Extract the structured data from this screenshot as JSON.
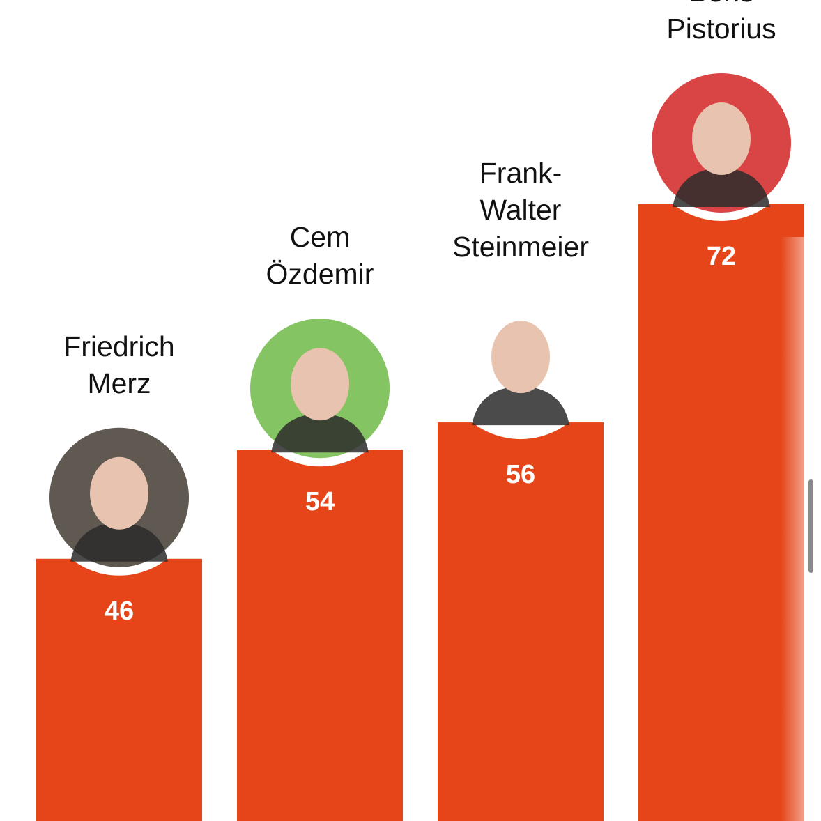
{
  "chart_data": {
    "type": "bar",
    "categories": [
      [
        "Friedrich",
        "Merz"
      ],
      [
        "Cem",
        "Özdemir"
      ],
      [
        "Frank-",
        "Walter",
        "Steinmeier"
      ],
      [
        "Boris",
        "Pistorius"
      ]
    ],
    "values": [
      46,
      54,
      56,
      72
    ],
    "avatar_colors": [
      "#5f5952",
      "#85c462",
      "#ffffff",
      "#d94545"
    ],
    "bar_color": "#e54518",
    "data_labels": [
      "46",
      "54",
      "56",
      "72"
    ],
    "title": "",
    "xlabel": "",
    "ylabel": "",
    "grid": false
  }
}
